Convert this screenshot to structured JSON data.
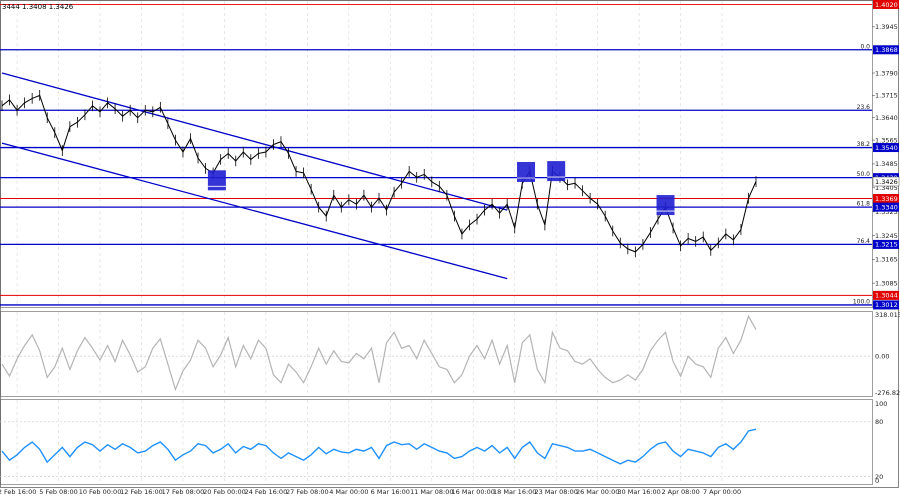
{
  "header": {
    "text": "3444 1.3408 1.3426"
  },
  "colors": {
    "price": "#000000",
    "level_blue": "#0000c8",
    "level_red": "#e00000",
    "channel": "#0000c8",
    "marker": "#1f1fd0",
    "cci": "#b4b4b4",
    "rsi": "#1e90ff",
    "grid": "#d9d9d9"
  },
  "chart_data": [
    {
      "type": "line",
      "panel": "price",
      "ylim": [
        1.3005,
        1.4035
      ],
      "xlim": [
        0,
        100
      ],
      "price_axis_ticks": [
        "1.3945",
        "1.3790",
        "1.3715",
        "1.3640",
        "1.3565",
        "1.3485",
        "1.3405",
        "1.3325",
        "1.3245",
        "1.3165",
        "1.3085"
      ],
      "price_axis_tick_values": [
        1.3945,
        1.379,
        1.3715,
        1.364,
        1.3565,
        1.3485,
        1.3405,
        1.3325,
        1.3245,
        1.3165,
        1.3085
      ],
      "x_tick_labels": [
        "2 Feb 16:00",
        "5 Feb 08:00",
        "10 Feb 00:00",
        "12 Feb 16:00",
        "17 Feb 08:00",
        "20 Feb 00:00",
        "24 Feb 16:00",
        "27 Feb 08:00",
        "4 Mar 00:00",
        "6 Mar 16:00",
        "11 Mar 08:00",
        "16 Mar 00:00",
        "18 Mar 16:00",
        "23 Mar 08:00",
        "26 Mar 00:00",
        "30 Mar 16:00",
        "2 Apr 08:00",
        "7 Apr 00:00"
      ],
      "x_tick_positions": [
        2,
        7.5,
        13,
        18.5,
        24,
        29.5,
        35,
        40.5,
        46,
        51.5,
        57,
        62.5,
        68,
        73.5,
        79,
        84.5,
        90,
        95.5
      ],
      "levels": [
        {
          "label": "1.4020",
          "value": 1.402,
          "color": "red"
        },
        {
          "label": "1.3868",
          "value": 1.3868,
          "color": "blue",
          "fib": "0.0"
        },
        {
          "label": "",
          "value": 1.3665,
          "color": "blue",
          "fib": "23.6"
        },
        {
          "label": "1.3540",
          "value": 1.354,
          "color": "blue",
          "fib": "38.2"
        },
        {
          "label": "1.3439",
          "value": 1.3439,
          "color": "blue",
          "fib": "50.0"
        },
        {
          "label": "1.3369",
          "value": 1.3369,
          "color": "red"
        },
        {
          "label": "1.3340",
          "value": 1.334,
          "color": "blue",
          "fib": "61.8"
        },
        {
          "label": "1.3215",
          "value": 1.3215,
          "color": "blue",
          "fib": "76.4"
        },
        {
          "label": "1.3044",
          "value": 1.3044,
          "color": "red"
        },
        {
          "label": "1.3012",
          "value": 1.3012,
          "color": "blue",
          "fib": "100.0"
        }
      ],
      "current_price_label": "1.3426",
      "current_price": 1.3426,
      "channel_upper": [
        [
          0,
          1.379
        ],
        [
          67,
          1.333
        ]
      ],
      "channel_lower": [
        [
          0,
          1.3555
        ],
        [
          67,
          1.31
        ]
      ],
      "markers": [
        {
          "x": 28.5,
          "y": 1.343
        },
        {
          "x": 69.5,
          "y": 1.3458
        },
        {
          "x": 73.5,
          "y": 1.3461
        },
        {
          "x": 88,
          "y": 1.3347
        }
      ],
      "price_series": [
        [
          0,
          1.368
        ],
        [
          1,
          1.37
        ],
        [
          2,
          1.3665
        ],
        [
          3,
          1.369
        ],
        [
          4,
          1.3705
        ],
        [
          5,
          1.3715
        ],
        [
          6,
          1.364
        ],
        [
          7,
          1.359
        ],
        [
          8,
          1.353
        ],
        [
          9,
          1.361
        ],
        [
          10,
          1.3625
        ],
        [
          11,
          1.365
        ],
        [
          12,
          1.368
        ],
        [
          13,
          1.366
        ],
        [
          14,
          1.369
        ],
        [
          15,
          1.367
        ],
        [
          16,
          1.3645
        ],
        [
          17,
          1.3665
        ],
        [
          18,
          1.364
        ],
        [
          19,
          1.3665
        ],
        [
          20,
          1.366
        ],
        [
          21,
          1.3675
        ],
        [
          22,
          1.362
        ],
        [
          23,
          1.3565
        ],
        [
          24,
          1.3525
        ],
        [
          25,
          1.357
        ],
        [
          26,
          1.3505
        ],
        [
          27,
          1.347
        ],
        [
          28,
          1.3455
        ],
        [
          29,
          1.35
        ],
        [
          30,
          1.352
        ],
        [
          31,
          1.3495
        ],
        [
          32,
          1.3525
        ],
        [
          33,
          1.35
        ],
        [
          34,
          1.352
        ],
        [
          35,
          1.3525
        ],
        [
          36,
          1.355
        ],
        [
          37,
          1.356
        ],
        [
          38,
          1.352
        ],
        [
          39,
          1.346
        ],
        [
          40,
          1.3455
        ],
        [
          41,
          1.34
        ],
        [
          42,
          1.334
        ],
        [
          43,
          1.331
        ],
        [
          44,
          1.338
        ],
        [
          45,
          1.334
        ],
        [
          46,
          1.3365
        ],
        [
          47,
          1.335
        ],
        [
          48,
          1.338
        ],
        [
          49,
          1.334
        ],
        [
          50,
          1.337
        ],
        [
          51,
          1.333
        ],
        [
          52,
          1.339
        ],
        [
          53,
          1.342
        ],
        [
          54,
          1.346
        ],
        [
          55,
          1.344
        ],
        [
          56,
          1.345
        ],
        [
          57,
          1.3425
        ],
        [
          58,
          1.341
        ],
        [
          59,
          1.338
        ],
        [
          60,
          1.331
        ],
        [
          61,
          1.325
        ],
        [
          62,
          1.328
        ],
        [
          63,
          1.33
        ],
        [
          64,
          1.333
        ],
        [
          65,
          1.335
        ],
        [
          66,
          1.332
        ],
        [
          67,
          1.335
        ],
        [
          68,
          1.327
        ],
        [
          69,
          1.342
        ],
        [
          70,
          1.346
        ],
        [
          71,
          1.335
        ],
        [
          72,
          1.328
        ],
        [
          73,
          1.346
        ],
        [
          74,
          1.344
        ],
        [
          75,
          1.3415
        ],
        [
          76,
          1.342
        ],
        [
          77,
          1.3395
        ],
        [
          78,
          1.337
        ],
        [
          79,
          1.335
        ],
        [
          80,
          1.331
        ],
        [
          81,
          1.326
        ],
        [
          82,
          1.322
        ],
        [
          83,
          1.32
        ],
        [
          84,
          1.319
        ],
        [
          85,
          1.3215
        ],
        [
          86,
          1.3255
        ],
        [
          87,
          1.33
        ],
        [
          88,
          1.334
        ],
        [
          89,
          1.327
        ],
        [
          90,
          1.321
        ],
        [
          91,
          1.3235
        ],
        [
          92,
          1.3225
        ],
        [
          93,
          1.324
        ],
        [
          94,
          1.3195
        ],
        [
          95,
          1.322
        ],
        [
          96,
          1.325
        ],
        [
          97,
          1.323
        ],
        [
          98,
          1.3265
        ],
        [
          99,
          1.337
        ],
        [
          100,
          1.3426
        ]
      ]
    },
    {
      "type": "line",
      "panel": "cci",
      "ylim": [
        -300,
        340
      ],
      "ticks": [
        "318.013",
        "0.00",
        "-276.828"
      ],
      "tick_values": [
        318.013,
        0,
        -276.828
      ],
      "series": [
        [
          0,
          -60
        ],
        [
          1,
          -150
        ],
        [
          2,
          -20
        ],
        [
          3,
          80
        ],
        [
          4,
          160
        ],
        [
          5,
          40
        ],
        [
          6,
          -160
        ],
        [
          7,
          -80
        ],
        [
          8,
          60
        ],
        [
          9,
          -100
        ],
        [
          10,
          40
        ],
        [
          11,
          140
        ],
        [
          12,
          60
        ],
        [
          13,
          -30
        ],
        [
          14,
          80
        ],
        [
          15,
          -40
        ],
        [
          16,
          120
        ],
        [
          17,
          10
        ],
        [
          18,
          -120
        ],
        [
          19,
          -80
        ],
        [
          20,
          60
        ],
        [
          21,
          130
        ],
        [
          22,
          -60
        ],
        [
          23,
          -250
        ],
        [
          24,
          -110
        ],
        [
          25,
          -30
        ],
        [
          26,
          120
        ],
        [
          27,
          60
        ],
        [
          28,
          -80
        ],
        [
          29,
          10
        ],
        [
          30,
          140
        ],
        [
          31,
          -80
        ],
        [
          32,
          80
        ],
        [
          33,
          -20
        ],
        [
          34,
          120
        ],
        [
          35,
          60
        ],
        [
          36,
          -140
        ],
        [
          37,
          -200
        ],
        [
          38,
          -60
        ],
        [
          39,
          -120
        ],
        [
          40,
          -200
        ],
        [
          41,
          -80
        ],
        [
          42,
          60
        ],
        [
          43,
          -60
        ],
        [
          44,
          40
        ],
        [
          45,
          -40
        ],
        [
          46,
          -50
        ],
        [
          47,
          20
        ],
        [
          48,
          -20
        ],
        [
          49,
          60
        ],
        [
          50,
          -200
        ],
        [
          51,
          100
        ],
        [
          52,
          180
        ],
        [
          53,
          60
        ],
        [
          54,
          80
        ],
        [
          55,
          -20
        ],
        [
          56,
          120
        ],
        [
          57,
          20
        ],
        [
          58,
          -80
        ],
        [
          59,
          -100
        ],
        [
          60,
          -200
        ],
        [
          61,
          -140
        ],
        [
          62,
          0
        ],
        [
          63,
          80
        ],
        [
          64,
          -20
        ],
        [
          65,
          120
        ],
        [
          66,
          -60
        ],
        [
          67,
          80
        ],
        [
          68,
          -200
        ],
        [
          69,
          100
        ],
        [
          70,
          160
        ],
        [
          71,
          -100
        ],
        [
          72,
          -200
        ],
        [
          73,
          180
        ],
        [
          74,
          60
        ],
        [
          75,
          40
        ],
        [
          76,
          -40
        ],
        [
          77,
          -60
        ],
        [
          78,
          -20
        ],
        [
          79,
          -100
        ],
        [
          80,
          -160
        ],
        [
          81,
          -200
        ],
        [
          82,
          -180
        ],
        [
          83,
          -140
        ],
        [
          84,
          -180
        ],
        [
          85,
          -100
        ],
        [
          86,
          40
        ],
        [
          87,
          120
        ],
        [
          88,
          180
        ],
        [
          89,
          -40
        ],
        [
          90,
          -150
        ],
        [
          91,
          0
        ],
        [
          92,
          -60
        ],
        [
          93,
          -80
        ],
        [
          94,
          -160
        ],
        [
          95,
          60
        ],
        [
          96,
          140
        ],
        [
          97,
          20
        ],
        [
          98,
          120
        ],
        [
          99,
          300
        ],
        [
          100,
          200
        ]
      ]
    },
    {
      "type": "line",
      "panel": "rsi",
      "ylim": [
        12,
        105
      ],
      "ticks": [
        "100",
        "80",
        "20",
        "0"
      ],
      "tick_values": [
        100,
        80,
        20,
        0
      ],
      "series": [
        [
          0,
          48
        ],
        [
          1,
          38
        ],
        [
          2,
          44
        ],
        [
          3,
          52
        ],
        [
          4,
          58
        ],
        [
          5,
          50
        ],
        [
          6,
          36
        ],
        [
          7,
          44
        ],
        [
          8,
          52
        ],
        [
          9,
          42
        ],
        [
          10,
          52
        ],
        [
          11,
          58
        ],
        [
          12,
          55
        ],
        [
          13,
          48
        ],
        [
          14,
          55
        ],
        [
          15,
          50
        ],
        [
          16,
          56
        ],
        [
          17,
          52
        ],
        [
          18,
          46
        ],
        [
          19,
          48
        ],
        [
          20,
          54
        ],
        [
          21,
          58
        ],
        [
          22,
          50
        ],
        [
          23,
          38
        ],
        [
          24,
          44
        ],
        [
          25,
          48
        ],
        [
          26,
          56
        ],
        [
          27,
          54
        ],
        [
          28,
          46
        ],
        [
          29,
          50
        ],
        [
          30,
          56
        ],
        [
          31,
          46
        ],
        [
          32,
          53
        ],
        [
          33,
          50
        ],
        [
          34,
          56
        ],
        [
          35,
          54
        ],
        [
          36,
          46
        ],
        [
          37,
          40
        ],
        [
          38,
          46
        ],
        [
          39,
          42
        ],
        [
          40,
          38
        ],
        [
          41,
          44
        ],
        [
          42,
          52
        ],
        [
          43,
          45
        ],
        [
          44,
          50
        ],
        [
          45,
          47
        ],
        [
          46,
          46
        ],
        [
          47,
          50
        ],
        [
          48,
          48
        ],
        [
          49,
          52
        ],
        [
          50,
          40
        ],
        [
          51,
          54
        ],
        [
          52,
          58
        ],
        [
          53,
          55
        ],
        [
          54,
          56
        ],
        [
          55,
          50
        ],
        [
          56,
          56
        ],
        [
          57,
          52
        ],
        [
          58,
          48
        ],
        [
          59,
          46
        ],
        [
          60,
          40
        ],
        [
          61,
          42
        ],
        [
          62,
          48
        ],
        [
          63,
          52
        ],
        [
          64,
          48
        ],
        [
          65,
          54
        ],
        [
          66,
          46
        ],
        [
          67,
          52
        ],
        [
          68,
          40
        ],
        [
          69,
          52
        ],
        [
          70,
          58
        ],
        [
          71,
          46
        ],
        [
          72,
          40
        ],
        [
          73,
          56
        ],
        [
          74,
          54
        ],
        [
          75,
          52
        ],
        [
          76,
          48
        ],
        [
          77,
          48
        ],
        [
          78,
          50
        ],
        [
          79,
          46
        ],
        [
          80,
          42
        ],
        [
          81,
          38
        ],
        [
          82,
          34
        ],
        [
          83,
          38
        ],
        [
          84,
          36
        ],
        [
          85,
          42
        ],
        [
          86,
          50
        ],
        [
          87,
          56
        ],
        [
          88,
          58
        ],
        [
          89,
          48
        ],
        [
          90,
          42
        ],
        [
          91,
          50
        ],
        [
          92,
          48
        ],
        [
          93,
          46
        ],
        [
          94,
          42
        ],
        [
          95,
          52
        ],
        [
          96,
          56
        ],
        [
          97,
          50
        ],
        [
          98,
          58
        ],
        [
          99,
          70
        ],
        [
          100,
          72
        ]
      ]
    }
  ]
}
